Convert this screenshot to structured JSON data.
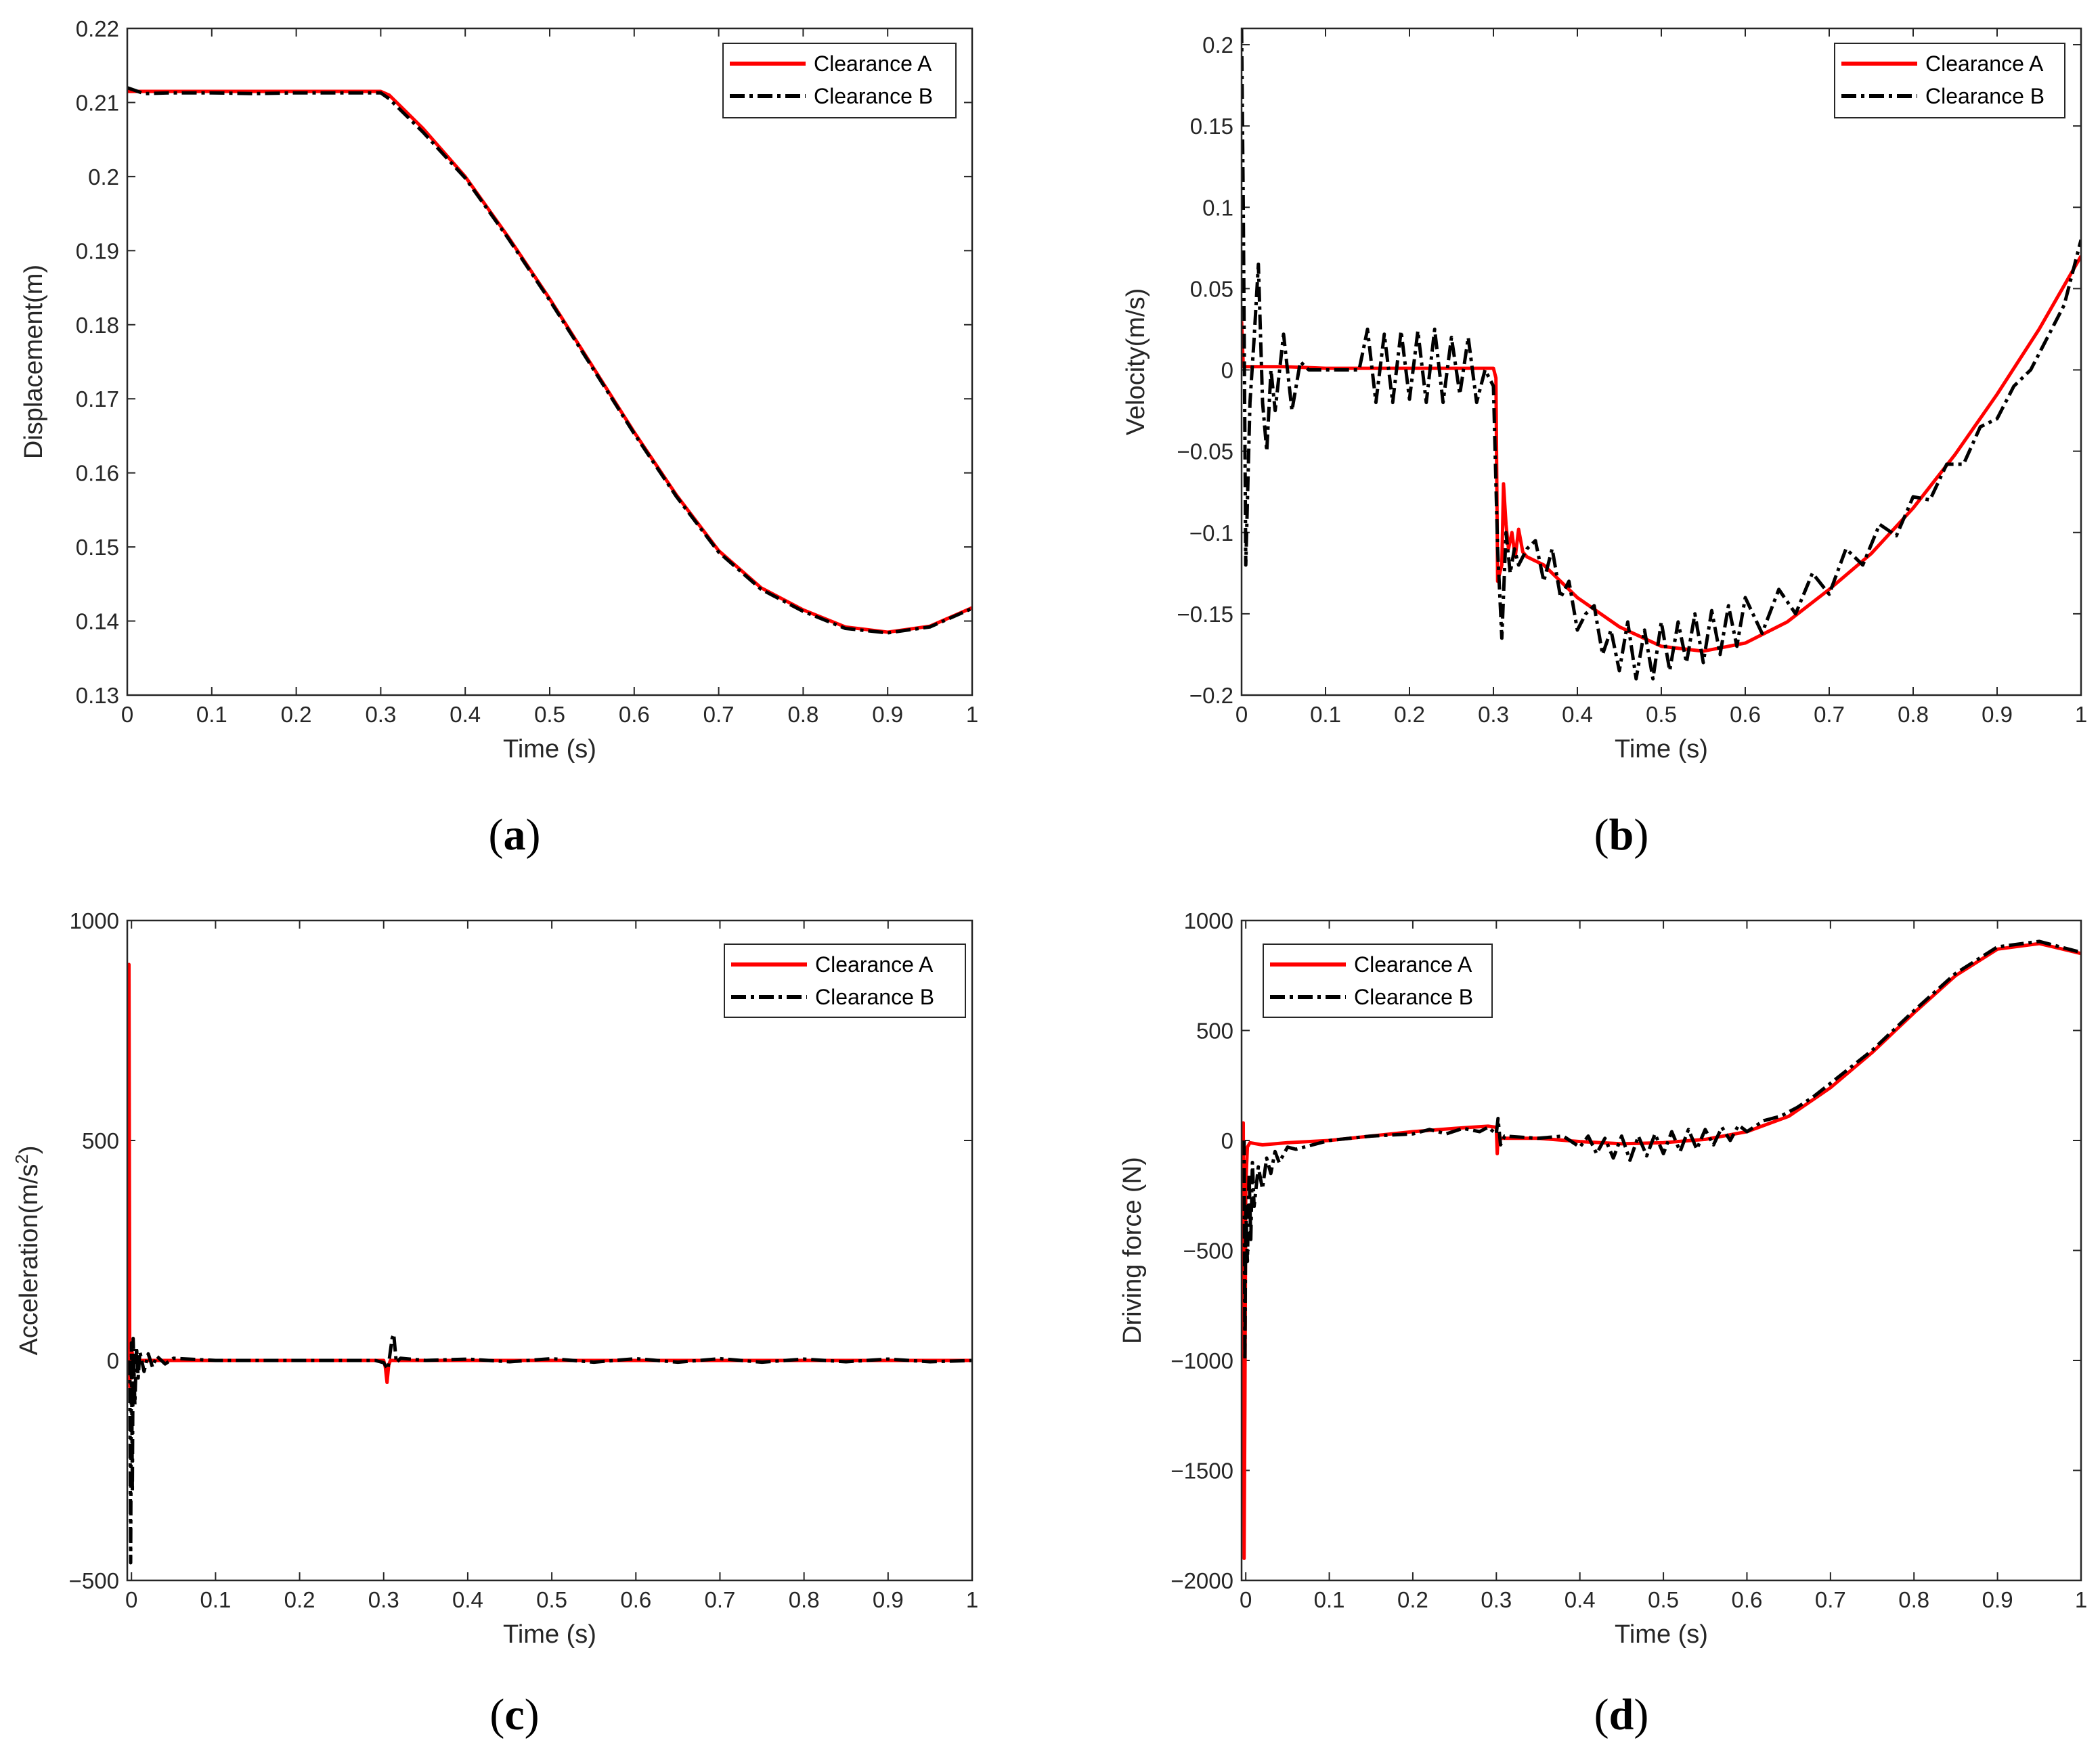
{
  "chart_data": [
    {
      "panel": "(a)",
      "caption_letter": "a",
      "type": "line",
      "title": "",
      "xlabel": "Time (s)",
      "ylabel": "Displacement(m)",
      "xlim": [
        0,
        1
      ],
      "ylim": [
        0.13,
        0.22
      ],
      "xticks": [
        0,
        0.1,
        0.2,
        0.3,
        0.4,
        0.5,
        0.6,
        0.7,
        0.8,
        0.9,
        1
      ],
      "xtick_labels": [
        "0",
        "0.1",
        "0.2",
        "0.3",
        "0.4",
        "0.5",
        "0.6",
        "0.7",
        "0.8",
        "0.9",
        "1"
      ],
      "yticks": [
        0.13,
        0.14,
        0.15,
        0.16,
        0.17,
        0.18,
        0.19,
        0.2,
        0.21,
        0.22
      ],
      "ytick_labels": [
        "0.13",
        "0.14",
        "0.15",
        "0.16",
        "0.17",
        "0.18",
        "0.19",
        "0.2",
        "0.21",
        "0.22"
      ],
      "legend_position": "top-right",
      "series": [
        {
          "name": "Clearance A",
          "color": "#ff0000",
          "style": "solid",
          "x": [
            0,
            0.05,
            0.1,
            0.15,
            0.2,
            0.25,
            0.3,
            0.31,
            0.35,
            0.4,
            0.45,
            0.5,
            0.55,
            0.6,
            0.65,
            0.7,
            0.75,
            0.8,
            0.85,
            0.9,
            0.95,
            1
          ],
          "y": [
            0.2115,
            0.2115,
            0.2115,
            0.2115,
            0.2115,
            0.2115,
            0.2115,
            0.211,
            0.2065,
            0.2,
            0.192,
            0.1835,
            0.1745,
            0.1655,
            0.157,
            0.1495,
            0.1445,
            0.1415,
            0.1392,
            0.1385,
            0.1393,
            0.1418
          ]
        },
        {
          "name": "Clearance B",
          "color": "#000000",
          "style": "dashdot",
          "x": [
            0,
            0.02,
            0.05,
            0.1,
            0.15,
            0.2,
            0.25,
            0.3,
            0.31,
            0.35,
            0.4,
            0.45,
            0.5,
            0.55,
            0.6,
            0.65,
            0.7,
            0.75,
            0.8,
            0.85,
            0.9,
            0.95,
            1
          ],
          "y": [
            0.212,
            0.2112,
            0.2113,
            0.2113,
            0.2112,
            0.2113,
            0.2113,
            0.2113,
            0.2105,
            0.206,
            0.1998,
            0.1918,
            0.1833,
            0.1743,
            0.1653,
            0.1568,
            0.1493,
            0.1443,
            0.1413,
            0.139,
            0.1384,
            0.1392,
            0.1417
          ]
        }
      ]
    },
    {
      "panel": "(b)",
      "caption_letter": "b",
      "type": "line",
      "title": "",
      "xlabel": "Time (s)",
      "ylabel": "Velocity(m/s)",
      "xlim": [
        0,
        1
      ],
      "ylim": [
        -0.2,
        0.21
      ],
      "xticks": [
        0,
        0.1,
        0.2,
        0.3,
        0.4,
        0.5,
        0.6,
        0.7,
        0.8,
        0.9,
        1
      ],
      "xtick_labels": [
        "0",
        "0.1",
        "0.2",
        "0.3",
        "0.4",
        "0.5",
        "0.6",
        "0.7",
        "0.8",
        "0.9",
        "1"
      ],
      "yticks": [
        -0.2,
        -0.15,
        -0.1,
        -0.05,
        0,
        0.05,
        0.1,
        0.15,
        0.2
      ],
      "ytick_labels": [
        "−0.2",
        "−0.15",
        "−0.1",
        "−0.05",
        "0",
        "0.05",
        "0.1",
        "0.15",
        "0.2"
      ],
      "legend_position": "top-right",
      "series": [
        {
          "name": "Clearance A",
          "color": "#ff0000",
          "style": "solid",
          "x": [
            0,
            0.002,
            0.01,
            0.05,
            0.1,
            0.2,
            0.3,
            0.303,
            0.305,
            0.31,
            0.312,
            0.315,
            0.318,
            0.322,
            0.326,
            0.33,
            0.335,
            0.34,
            0.36,
            0.4,
            0.45,
            0.5,
            0.55,
            0.6,
            0.65,
            0.7,
            0.75,
            0.8,
            0.85,
            0.9,
            0.95,
            1
          ],
          "y": [
            0.03,
            0.002,
            0.002,
            0.002,
            0.001,
            0.001,
            0.001,
            -0.005,
            -0.13,
            -0.12,
            -0.07,
            -0.095,
            -0.11,
            -0.1,
            -0.115,
            -0.098,
            -0.112,
            -0.115,
            -0.12,
            -0.14,
            -0.158,
            -0.17,
            -0.173,
            -0.168,
            -0.155,
            -0.135,
            -0.113,
            -0.085,
            -0.052,
            -0.015,
            0.025,
            0.07
          ]
        },
        {
          "name": "Clearance B",
          "color": "#000000",
          "style": "dashdot",
          "x": [
            0,
            0.002,
            0.005,
            0.01,
            0.015,
            0.02,
            0.025,
            0.03,
            0.035,
            0.04,
            0.05,
            0.06,
            0.07,
            0.08,
            0.09,
            0.1,
            0.12,
            0.14,
            0.15,
            0.16,
            0.17,
            0.18,
            0.19,
            0.2,
            0.21,
            0.22,
            0.23,
            0.24,
            0.25,
            0.26,
            0.27,
            0.28,
            0.29,
            0.3,
            0.305,
            0.31,
            0.315,
            0.32,
            0.325,
            0.33,
            0.34,
            0.35,
            0.36,
            0.37,
            0.38,
            0.39,
            0.4,
            0.41,
            0.42,
            0.43,
            0.44,
            0.45,
            0.46,
            0.47,
            0.48,
            0.49,
            0.5,
            0.51,
            0.52,
            0.53,
            0.54,
            0.55,
            0.56,
            0.57,
            0.58,
            0.59,
            0.6,
            0.62,
            0.64,
            0.66,
            0.68,
            0.7,
            0.72,
            0.74,
            0.76,
            0.78,
            0.8,
            0.82,
            0.84,
            0.86,
            0.88,
            0.9,
            0.92,
            0.94,
            0.96,
            0.98,
            1
          ],
          "y": [
            0.21,
            0.1,
            -0.12,
            -0.02,
            0.02,
            0.065,
            -0.02,
            -0.05,
            0.0,
            -0.025,
            0.022,
            -0.025,
            0.005,
            0.0,
            0.0,
            0.0,
            0.0,
            0.0,
            0.025,
            -0.02,
            0.022,
            -0.02,
            0.024,
            -0.018,
            0.024,
            -0.02,
            0.025,
            -0.02,
            0.02,
            -0.015,
            0.02,
            -0.02,
            0.0,
            -0.01,
            -0.11,
            -0.165,
            -0.1,
            -0.125,
            -0.11,
            -0.12,
            -0.11,
            -0.105,
            -0.13,
            -0.11,
            -0.14,
            -0.13,
            -0.16,
            -0.15,
            -0.145,
            -0.175,
            -0.16,
            -0.185,
            -0.155,
            -0.19,
            -0.16,
            -0.19,
            -0.155,
            -0.185,
            -0.155,
            -0.18,
            -0.15,
            -0.18,
            -0.148,
            -0.175,
            -0.145,
            -0.17,
            -0.14,
            -0.162,
            -0.135,
            -0.15,
            -0.125,
            -0.138,
            -0.11,
            -0.12,
            -0.095,
            -0.102,
            -0.078,
            -0.08,
            -0.058,
            -0.058,
            -0.035,
            -0.03,
            -0.01,
            0.0,
            0.02,
            0.04,
            0.08
          ]
        }
      ]
    },
    {
      "panel": "(c)",
      "caption_letter": "c",
      "type": "line",
      "title": "",
      "xlabel": "Time (s)",
      "ylabel": "Acceleration(m/s",
      "ylabel_sup": "2",
      "ylabel_close": ")",
      "xlim": [
        -0.005,
        1
      ],
      "ylim": [
        -500,
        1000
      ],
      "xticks": [
        0,
        0.1,
        0.2,
        0.3,
        0.4,
        0.5,
        0.6,
        0.7,
        0.8,
        0.9,
        1
      ],
      "xtick_labels": [
        "0",
        "0.1",
        "0.2",
        "0.3",
        "0.4",
        "0.5",
        "0.6",
        "0.7",
        "0.8",
        "0.9",
        "1"
      ],
      "yticks": [
        -500,
        0,
        500,
        1000
      ],
      "ytick_labels": [
        "−500",
        "0",
        "500",
        "1000"
      ],
      "legend_position": "top-right",
      "series": [
        {
          "name": "Clearance A",
          "color": "#ff0000",
          "style": "solid",
          "x": [
            -0.004,
            -0.003,
            -0.002,
            -0.001,
            0.0,
            0.002,
            0.005,
            0.02,
            0.1,
            0.2,
            0.29,
            0.3,
            0.302,
            0.304,
            0.306,
            0.308,
            0.31,
            0.4,
            0.5,
            0.6,
            0.7,
            0.8,
            0.9,
            1
          ],
          "y": [
            0,
            900,
            -60,
            0,
            30,
            0,
            0,
            0,
            0,
            0,
            0,
            0,
            -15,
            -50,
            -10,
            0,
            0,
            0,
            0,
            0,
            0,
            0,
            0,
            0
          ]
        },
        {
          "name": "Clearance B",
          "color": "#000000",
          "style": "dashdot",
          "x": [
            -0.002,
            -0.001,
            0.0,
            0.001,
            0.002,
            0.004,
            0.006,
            0.008,
            0.01,
            0.015,
            0.02,
            0.025,
            0.03,
            0.04,
            0.05,
            0.1,
            0.2,
            0.29,
            0.3,
            0.305,
            0.31,
            0.312,
            0.315,
            0.32,
            0.35,
            0.4,
            0.45,
            0.5,
            0.55,
            0.6,
            0.65,
            0.7,
            0.75,
            0.8,
            0.85,
            0.9,
            0.95,
            1
          ],
          "y": [
            0,
            -460,
            40,
            -300,
            50,
            -100,
            30,
            -40,
            20,
            -25,
            15,
            -15,
            10,
            -8,
            5,
            0,
            0,
            0,
            -5,
            -20,
            50,
            60,
            -5,
            5,
            0,
            3,
            -3,
            4,
            -4,
            4,
            -4,
            4,
            -4,
            3,
            -3,
            3,
            -3,
            0
          ]
        }
      ]
    },
    {
      "panel": "(d)",
      "caption_letter": "d",
      "type": "line",
      "title": "",
      "xlabel": "Time (s)",
      "ylabel": "Driving force (N)",
      "xlim": [
        -0.005,
        1
      ],
      "ylim": [
        -2000,
        1000
      ],
      "xticks": [
        0,
        0.1,
        0.2,
        0.3,
        0.4,
        0.5,
        0.6,
        0.7,
        0.8,
        0.9,
        1
      ],
      "xtick_labels": [
        "0",
        "0.1",
        "0.2",
        "0.3",
        "0.4",
        "0.5",
        "0.6",
        "0.7",
        "0.8",
        "0.9",
        "1"
      ],
      "yticks": [
        -2000,
        -1500,
        -1000,
        -500,
        0,
        500,
        1000
      ],
      "ytick_labels": [
        "−2000",
        "−1500",
        "−1000",
        "−500",
        "0",
        "500",
        "1000"
      ],
      "legend_position": "top-left",
      "series": [
        {
          "name": "Clearance A",
          "color": "#ff0000",
          "style": "solid",
          "x": [
            -0.004,
            -0.003,
            -0.002,
            -0.001,
            0.0,
            0.002,
            0.005,
            0.02,
            0.05,
            0.1,
            0.15,
            0.2,
            0.25,
            0.29,
            0.3,
            0.301,
            0.302,
            0.305,
            0.35,
            0.4,
            0.45,
            0.5,
            0.55,
            0.6,
            0.65,
            0.7,
            0.75,
            0.8,
            0.85,
            0.9,
            0.95,
            1
          ],
          "y": [
            -100,
            80,
            -1900,
            -1200,
            -200,
            -30,
            -10,
            -20,
            -10,
            0,
            20,
            40,
            55,
            65,
            60,
            -60,
            10,
            10,
            10,
            -5,
            -15,
            -10,
            5,
            40,
            110,
            240,
            400,
            580,
            750,
            870,
            895,
            850
          ]
        },
        {
          "name": "Clearance B",
          "color": "#000000",
          "style": "dashdot",
          "x": [
            -0.002,
            -0.001,
            0.0,
            0.002,
            0.004,
            0.006,
            0.008,
            0.01,
            0.015,
            0.02,
            0.025,
            0.03,
            0.035,
            0.04,
            0.05,
            0.06,
            0.08,
            0.1,
            0.15,
            0.2,
            0.22,
            0.24,
            0.26,
            0.28,
            0.29,
            0.3,
            0.302,
            0.305,
            0.31,
            0.35,
            0.38,
            0.4,
            0.41,
            0.42,
            0.43,
            0.44,
            0.45,
            0.46,
            0.47,
            0.48,
            0.49,
            0.5,
            0.51,
            0.52,
            0.53,
            0.54,
            0.55,
            0.56,
            0.57,
            0.58,
            0.59,
            0.6,
            0.62,
            0.64,
            0.66,
            0.68,
            0.7,
            0.75,
            0.8,
            0.85,
            0.9,
            0.95,
            1
          ],
          "y": [
            0,
            -1000,
            -300,
            -550,
            -150,
            -450,
            -100,
            -300,
            -120,
            -220,
            -80,
            -150,
            -50,
            -100,
            -30,
            -40,
            -20,
            0,
            20,
            30,
            50,
            30,
            55,
            40,
            60,
            30,
            100,
            -20,
            20,
            10,
            20,
            -30,
            20,
            -60,
            10,
            -80,
            20,
            -90,
            20,
            -70,
            30,
            -60,
            40,
            -50,
            50,
            -40,
            50,
            -20,
            60,
            0,
            70,
            40,
            90,
            110,
            150,
            200,
            260,
            410,
            590,
            760,
            880,
            905,
            855
          ]
        }
      ]
    }
  ]
}
